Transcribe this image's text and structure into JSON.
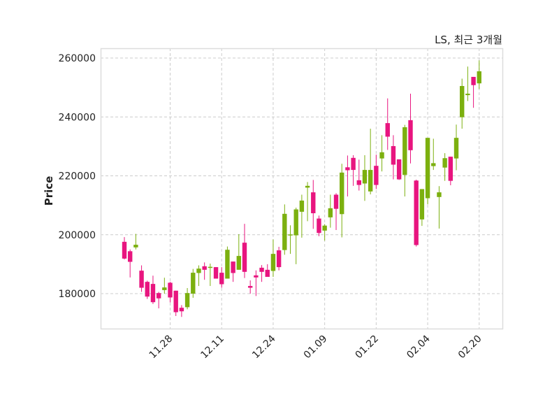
{
  "chart_data": {
    "type": "candlestick",
    "title": "LS, 최근 3개월",
    "xlabel": "",
    "ylabel": "Price",
    "ylim": [
      167000,
      263500
    ],
    "yticks": [
      180000,
      200000,
      220000,
      240000,
      260000
    ],
    "ytick_labels": [
      "180000",
      "200000",
      "220000",
      "240000",
      "260000"
    ],
    "xticks": [
      {
        "index": 8,
        "label": "11.28"
      },
      {
        "index": 17,
        "label": "12.11"
      },
      {
        "index": 26,
        "label": "12.24"
      },
      {
        "index": 35,
        "label": "01.09"
      },
      {
        "index": 44,
        "label": "01.22"
      },
      {
        "index": 53,
        "label": "02.04"
      },
      {
        "index": 62,
        "label": "02.20"
      }
    ],
    "grid": true,
    "colors": {
      "up": "#7cb00f",
      "down": "#e8157f",
      "grid": "#cccccc",
      "frame": "#dddddd"
    },
    "ohlc": [
      [
        197600,
        199200,
        191600,
        191900
      ],
      [
        194400,
        195000,
        185500,
        190800
      ],
      [
        195700,
        200300,
        195000,
        196600
      ],
      [
        187800,
        189600,
        180600,
        182000
      ],
      [
        184000,
        184400,
        178200,
        179000
      ],
      [
        183300,
        186100,
        176500,
        177100
      ],
      [
        180200,
        180600,
        175000,
        178400
      ],
      [
        181200,
        185400,
        180000,
        182100
      ],
      [
        183700,
        184000,
        177000,
        178700
      ],
      [
        181000,
        181000,
        172400,
        173700
      ],
      [
        175200,
        176100,
        172100,
        174000
      ],
      [
        175400,
        181900,
        174700,
        180200
      ],
      [
        180000,
        188400,
        178600,
        187100
      ],
      [
        187000,
        189600,
        182600,
        188500
      ],
      [
        189300,
        190600,
        184700,
        188100
      ],
      [
        188800,
        190200,
        182600,
        189100
      ],
      [
        189000,
        189000,
        185100,
        185100
      ],
      [
        187100,
        189000,
        182000,
        183200
      ],
      [
        185100,
        196000,
        185100,
        194900
      ],
      [
        190900,
        190900,
        184000,
        187000
      ],
      [
        188100,
        200200,
        188100,
        192800
      ],
      [
        197300,
        203700,
        185300,
        187400
      ],
      [
        182600,
        184500,
        180000,
        182000
      ],
      [
        186200,
        187900,
        179200,
        185500
      ],
      [
        188800,
        189700,
        184000,
        187400
      ],
      [
        188100,
        190000,
        185700,
        185700
      ],
      [
        187700,
        198400,
        185700,
        193500
      ],
      [
        194700,
        195900,
        187900,
        189000
      ],
      [
        194800,
        210300,
        193200,
        207100
      ],
      [
        199900,
        203200,
        193500,
        200100
      ],
      [
        199800,
        209200,
        190000,
        208600
      ],
      [
        207800,
        213600,
        199000,
        211600
      ],
      [
        216000,
        217900,
        204600,
        216600
      ],
      [
        214400,
        218600,
        202000,
        207300
      ],
      [
        205500,
        206500,
        199500,
        200600
      ],
      [
        201400,
        203600,
        198000,
        203100
      ],
      [
        205900,
        213600,
        202400,
        209000
      ],
      [
        213600,
        214100,
        201600,
        208800
      ],
      [
        207000,
        224100,
        199100,
        221100
      ],
      [
        222900,
        226900,
        213000,
        221900
      ],
      [
        226100,
        227000,
        216600,
        222000
      ],
      [
        218500,
        225500,
        215000,
        216900
      ],
      [
        217400,
        227000,
        211500,
        222000
      ],
      [
        214700,
        236000,
        213700,
        222000
      ],
      [
        223400,
        227200,
        215500,
        216900
      ],
      [
        225900,
        233800,
        221500,
        228000
      ],
      [
        237900,
        246300,
        228800,
        233300
      ],
      [
        230100,
        233800,
        218800,
        223800
      ],
      [
        225600,
        225600,
        218600,
        218800
      ],
      [
        220300,
        237300,
        213000,
        236500
      ],
      [
        238900,
        247900,
        224200,
        228700
      ],
      [
        218400,
        218700,
        196000,
        196500
      ],
      [
        205200,
        215500,
        203000,
        215500
      ],
      [
        212400,
        232900,
        210300,
        232900
      ],
      [
        223300,
        232600,
        222000,
        224300
      ],
      [
        212800,
        216500,
        202100,
        214400
      ],
      [
        222800,
        227700,
        218300,
        226000
      ],
      [
        226500,
        226500,
        216800,
        218300
      ],
      [
        225900,
        237400,
        221900,
        232900
      ],
      [
        239900,
        253000,
        236000,
        250500
      ],
      [
        247400,
        257100,
        245400,
        247900
      ],
      [
        253600,
        253600,
        243100,
        250800
      ],
      [
        251400,
        259200,
        249500,
        255500
      ]
    ]
  }
}
